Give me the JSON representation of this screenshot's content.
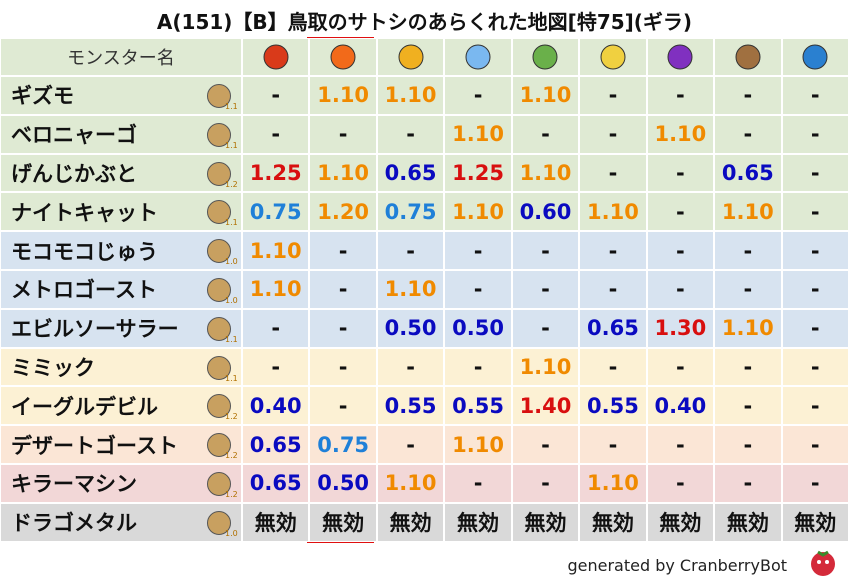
{
  "title": "A(151)【B】鳥取のサトシのあらくれた地図[特75](ギラ)",
  "table": {
    "header": "モンスター名",
    "palette": {
      "strong": "#d80f0f",
      "up": "#f08a00",
      "mid": "#1f80d8",
      "low": "#0a0ac0",
      "none": "#111111"
    },
    "rows": [
      {
        "name": "ギズモ",
        "tag": "1.1",
        "bg": "#dfead3",
        "values": [
          "-",
          "1.10",
          "1.10",
          "-",
          "1.10",
          "-",
          "-",
          "-",
          "-"
        ]
      },
      {
        "name": "ベロニャーゴ",
        "tag": "1.1",
        "bg": "#dfead3",
        "values": [
          "-",
          "-",
          "-",
          "1.10",
          "-",
          "-",
          "1.10",
          "-",
          "-"
        ]
      },
      {
        "name": "げんじかぶと",
        "tag": "1.2",
        "bg": "#dfead3",
        "values": [
          "1.25",
          "1.10",
          "0.65",
          "1.25",
          "1.10",
          "-",
          "-",
          "0.65",
          "-"
        ]
      },
      {
        "name": "ナイトキャット",
        "tag": "1.1",
        "bg": "#dfead3",
        "values": [
          "0.75",
          "1.20",
          "0.75",
          "1.10",
          "0.60",
          "1.10",
          "-",
          "1.10",
          "-"
        ]
      },
      {
        "name": "モコモコじゅう",
        "tag": "1.0",
        "bg": "#d7e3f0",
        "values": [
          "1.10",
          "-",
          "-",
          "-",
          "-",
          "-",
          "-",
          "-",
          "-"
        ]
      },
      {
        "name": "メトロゴースト",
        "tag": "1.0",
        "bg": "#d7e3f0",
        "values": [
          "1.10",
          "-",
          "1.10",
          "-",
          "-",
          "-",
          "-",
          "-",
          "-"
        ]
      },
      {
        "name": "エビルソーサラー",
        "tag": "1.1",
        "bg": "#d7e3f0",
        "values": [
          "-",
          "-",
          "0.50",
          "0.50",
          "-",
          "0.65",
          "1.30",
          "1.10",
          "-"
        ]
      },
      {
        "name": "ミミック",
        "tag": "1.1",
        "bg": "#fcf1d4",
        "values": [
          "-",
          "-",
          "-",
          "-",
          "1.10",
          "-",
          "-",
          "-",
          "-"
        ]
      },
      {
        "name": "イーグルデビル",
        "tag": "1.2",
        "bg": "#fcf1d4",
        "values": [
          "0.40",
          "-",
          "0.55",
          "0.55",
          "1.40",
          "0.55",
          "0.40",
          "-",
          "-"
        ]
      },
      {
        "name": "デザートゴースト",
        "tag": "1.2",
        "bg": "#fbe6d6",
        "values": [
          "0.65",
          "0.75",
          "-",
          "1.10",
          "-",
          "-",
          "-",
          "-",
          "-"
        ]
      },
      {
        "name": "キラーマシン",
        "tag": "1.2",
        "bg": "#f2d7d7",
        "values": [
          "0.65",
          "0.50",
          "1.10",
          "-",
          "-",
          "1.10",
          "-",
          "-",
          "-"
        ]
      },
      {
        "name": "ドラゴメタル",
        "tag": "1.0",
        "bg": "#d9d9d9",
        "values": [
          "無効",
          "無効",
          "無効",
          "無効",
          "無効",
          "無効",
          "無効",
          "無効",
          "無効"
        ]
      }
    ]
  },
  "footer": {
    "text": "generated by CranberryBot"
  }
}
